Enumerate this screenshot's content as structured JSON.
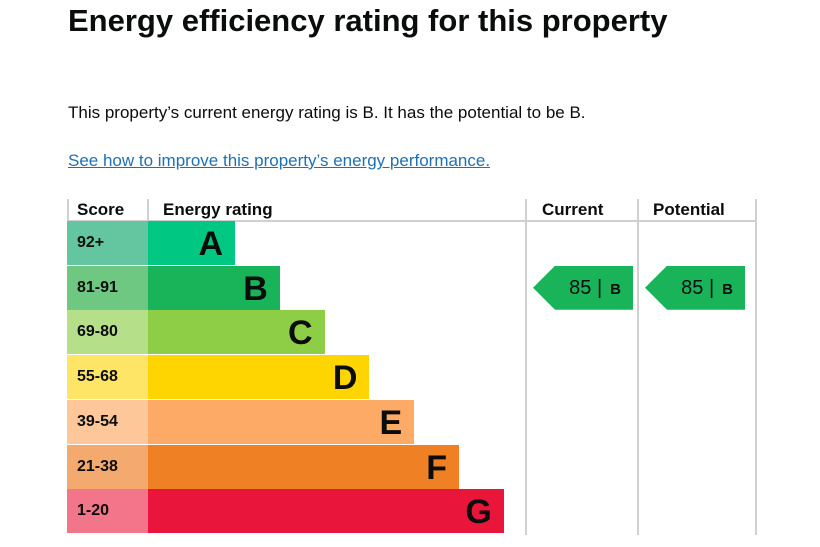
{
  "title": "Energy efficiency rating for this property",
  "intro": "This property’s current energy rating is B. It has the potential to be B.",
  "link": "See how to improve this property’s energy performance.",
  "chart_data": {
    "type": "table",
    "headers": {
      "score": "Score",
      "rating": "Energy rating",
      "current": "Current",
      "potential": "Potential"
    },
    "bands": [
      {
        "letter": "A",
        "range": "92+",
        "color": "#00c781",
        "score_color": "#63c6a1",
        "min": 92
      },
      {
        "letter": "B",
        "range": "81-91",
        "color": "#19b459",
        "score_color": "#6ec882",
        "min": 81
      },
      {
        "letter": "C",
        "range": "69-80",
        "color": "#8dce46",
        "score_color": "#b6df8a",
        "min": 69
      },
      {
        "letter": "D",
        "range": "55-68",
        "color": "#ffd500",
        "score_color": "#ffe566",
        "min": 55
      },
      {
        "letter": "E",
        "range": "39-54",
        "color": "#fcaa65",
        "score_color": "#fdc79a",
        "min": 39
      },
      {
        "letter": "F",
        "range": "21-38",
        "color": "#ef8023",
        "score_color": "#f4aa6e",
        "min": 21
      },
      {
        "letter": "G",
        "range": "1-20",
        "color": "#e9153b",
        "score_color": "#f27589",
        "min": 1
      }
    ],
    "current": {
      "score": "85",
      "sep": "|",
      "letter": "B",
      "color": "#19b459"
    },
    "potential": {
      "score": "85",
      "sep": "|",
      "letter": "B",
      "color": "#19b459"
    }
  }
}
